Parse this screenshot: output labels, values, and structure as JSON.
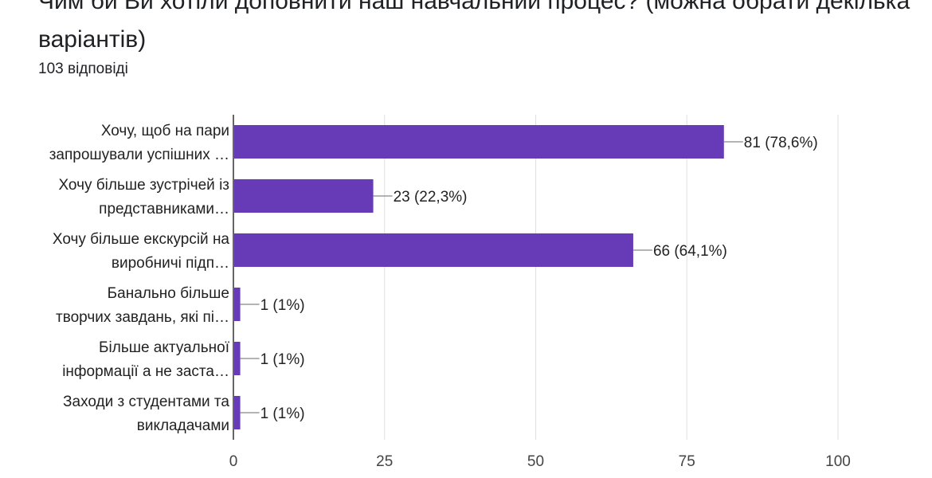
{
  "header": {
    "title": "Чим би Ви хотіли доповнити наш навчальний процес? (можна обрати декілька варіантів)",
    "response_count": "103 відповіді"
  },
  "colors": {
    "bar": "#673ab7",
    "grid": "#e0e0e0",
    "axis": "#333333"
  },
  "chart_data": {
    "type": "bar",
    "orientation": "horizontal",
    "title": "Чим би Ви хотіли доповнити наш навчальний процес? (можна обрати декілька варіантів)",
    "categories": [
      [
        "Хочу, щоб на пари",
        "запрошували успішних …"
      ],
      [
        "Хочу більше зустрічей із",
        "представниками…"
      ],
      [
        "Хочу більше екскурсій на",
        "виробничі підп…"
      ],
      [
        "Банально більше",
        "творчих завдань, які пі…"
      ],
      [
        "Більше актуальної",
        "інформації а не заста…"
      ],
      [
        "Заходи з студентами та",
        "викладачами"
      ]
    ],
    "values": [
      81,
      23,
      66,
      1,
      1,
      1
    ],
    "data_labels": [
      "81 (78,6%)",
      "23 (22,3%)",
      "66 (64,1%)",
      "1 (1%)",
      "1 (1%)",
      "1 (1%)"
    ],
    "xlim": [
      0,
      100
    ],
    "xticks": [
      0,
      25,
      50,
      75,
      100
    ],
    "grid": true,
    "xlabel": "",
    "ylabel": ""
  }
}
